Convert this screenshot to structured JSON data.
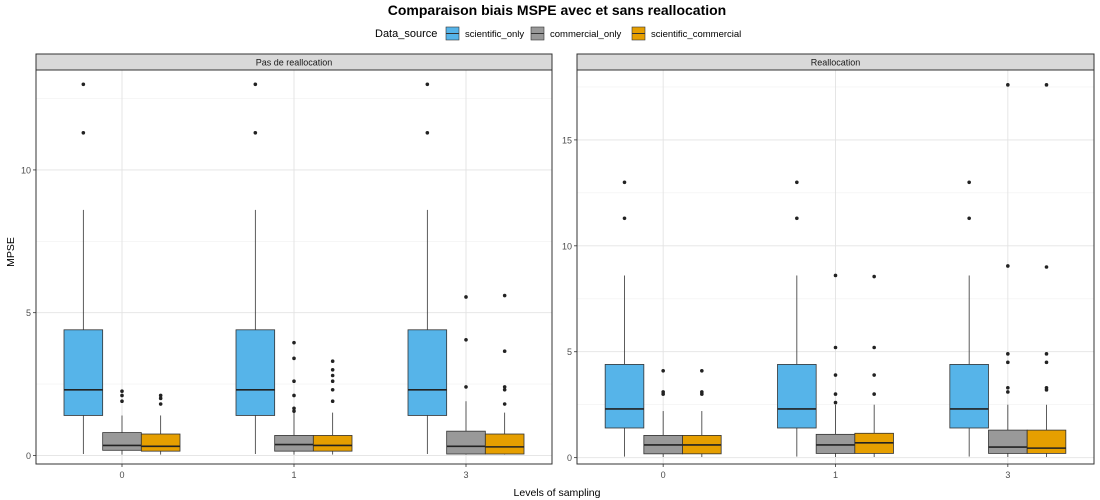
{
  "title": "Comparaison biais MSPE avec et sans reallocation",
  "legend": {
    "title": "Data_source",
    "position": "top",
    "entries": [
      {
        "name": "scientific_only",
        "color": "#56B4E9"
      },
      {
        "name": "commercial_only",
        "color": "#999999"
      },
      {
        "name": "scientific_commercial",
        "color": "#E69F00"
      }
    ]
  },
  "chart_data": [
    {
      "type": "boxplot",
      "panel_label": "Pas de reallocation",
      "xlabel": "Levels of sampling",
      "ylabel": "MPSE",
      "categories": [
        "0",
        "1",
        "3"
      ],
      "ylim": [
        -0.3,
        13.5
      ],
      "yticks": [
        0,
        5,
        10
      ],
      "grid": true,
      "series": [
        {
          "name": "scientific_only",
          "boxes": [
            {
              "min": 0.05,
              "q1": 1.4,
              "median": 2.3,
              "q3": 4.4,
              "max": 8.6,
              "outliers": [
                11.3,
                13.0
              ]
            },
            {
              "min": 0.05,
              "q1": 1.4,
              "median": 2.3,
              "q3": 4.4,
              "max": 8.6,
              "outliers": [
                11.3,
                13.0
              ]
            },
            {
              "min": 0.05,
              "q1": 1.4,
              "median": 2.3,
              "q3": 4.4,
              "max": 8.6,
              "outliers": [
                11.3,
                13.0
              ]
            }
          ]
        },
        {
          "name": "commercial_only",
          "boxes": [
            {
              "min": 0.03,
              "q1": 0.18,
              "median": 0.35,
              "q3": 0.8,
              "max": 1.4,
              "outliers": [
                1.9,
                2.1,
                2.25
              ]
            },
            {
              "min": 0.03,
              "q1": 0.15,
              "median": 0.38,
              "q3": 0.7,
              "max": 1.5,
              "outliers": [
                1.55,
                1.65,
                2.1,
                2.6,
                3.4,
                3.95
              ]
            },
            {
              "min": 0.03,
              "q1": 0.05,
              "median": 0.32,
              "q3": 0.85,
              "max": 1.9,
              "outliers": [
                2.4,
                4.05,
                5.55
              ]
            }
          ]
        },
        {
          "name": "scientific_commercial",
          "boxes": [
            {
              "min": 0.03,
              "q1": 0.15,
              "median": 0.32,
              "q3": 0.75,
              "max": 1.4,
              "outliers": [
                1.8,
                2.0,
                2.1
              ]
            },
            {
              "min": 0.03,
              "q1": 0.15,
              "median": 0.35,
              "q3": 0.7,
              "max": 1.5,
              "outliers": [
                1.9,
                2.3,
                2.6,
                2.8,
                3.0,
                3.3
              ]
            },
            {
              "min": 0.03,
              "q1": 0.05,
              "median": 0.3,
              "q3": 0.75,
              "max": 1.5,
              "outliers": [
                1.8,
                2.3,
                2.4,
                3.65,
                5.6
              ]
            }
          ]
        }
      ]
    },
    {
      "type": "boxplot",
      "panel_label": "Reallocation",
      "xlabel": "Levels of sampling",
      "ylabel": "MPSE",
      "categories": [
        "0",
        "1",
        "3"
      ],
      "ylim": [
        -0.3,
        18.3
      ],
      "yticks": [
        0,
        5,
        10,
        15
      ],
      "grid": true,
      "series": [
        {
          "name": "scientific_only",
          "boxes": [
            {
              "min": 0.05,
              "q1": 1.4,
              "median": 2.3,
              "q3": 4.4,
              "max": 8.6,
              "outliers": [
                11.3,
                13.0
              ]
            },
            {
              "min": 0.05,
              "q1": 1.4,
              "median": 2.3,
              "q3": 4.4,
              "max": 8.6,
              "outliers": [
                11.3,
                13.0
              ]
            },
            {
              "min": 0.05,
              "q1": 1.4,
              "median": 2.3,
              "q3": 4.4,
              "max": 8.6,
              "outliers": [
                11.3,
                13.0
              ]
            }
          ]
        },
        {
          "name": "commercial_only",
          "boxes": [
            {
              "min": 0.03,
              "q1": 0.18,
              "median": 0.6,
              "q3": 1.05,
              "max": 2.2,
              "outliers": [
                3.0,
                3.1,
                4.1
              ]
            },
            {
              "min": 0.03,
              "q1": 0.2,
              "median": 0.6,
              "q3": 1.1,
              "max": 2.5,
              "outliers": [
                2.6,
                3.0,
                3.9,
                5.2,
                8.6
              ]
            },
            {
              "min": 0.03,
              "q1": 0.2,
              "median": 0.5,
              "q3": 1.3,
              "max": 2.5,
              "outliers": [
                3.1,
                3.3,
                4.5,
                4.9,
                9.05,
                17.6
              ]
            }
          ]
        },
        {
          "name": "scientific_commercial",
          "boxes": [
            {
              "min": 0.03,
              "q1": 0.18,
              "median": 0.6,
              "q3": 1.05,
              "max": 2.2,
              "outliers": [
                3.0,
                3.1,
                4.1
              ]
            },
            {
              "min": 0.03,
              "q1": 0.2,
              "median": 0.7,
              "q3": 1.15,
              "max": 2.5,
              "outliers": [
                3.0,
                3.9,
                5.2,
                8.55
              ]
            },
            {
              "min": 0.03,
              "q1": 0.2,
              "median": 0.45,
              "q3": 1.3,
              "max": 2.5,
              "outliers": [
                3.2,
                3.3,
                4.5,
                4.9,
                9.0,
                17.6
              ]
            }
          ]
        }
      ]
    }
  ]
}
